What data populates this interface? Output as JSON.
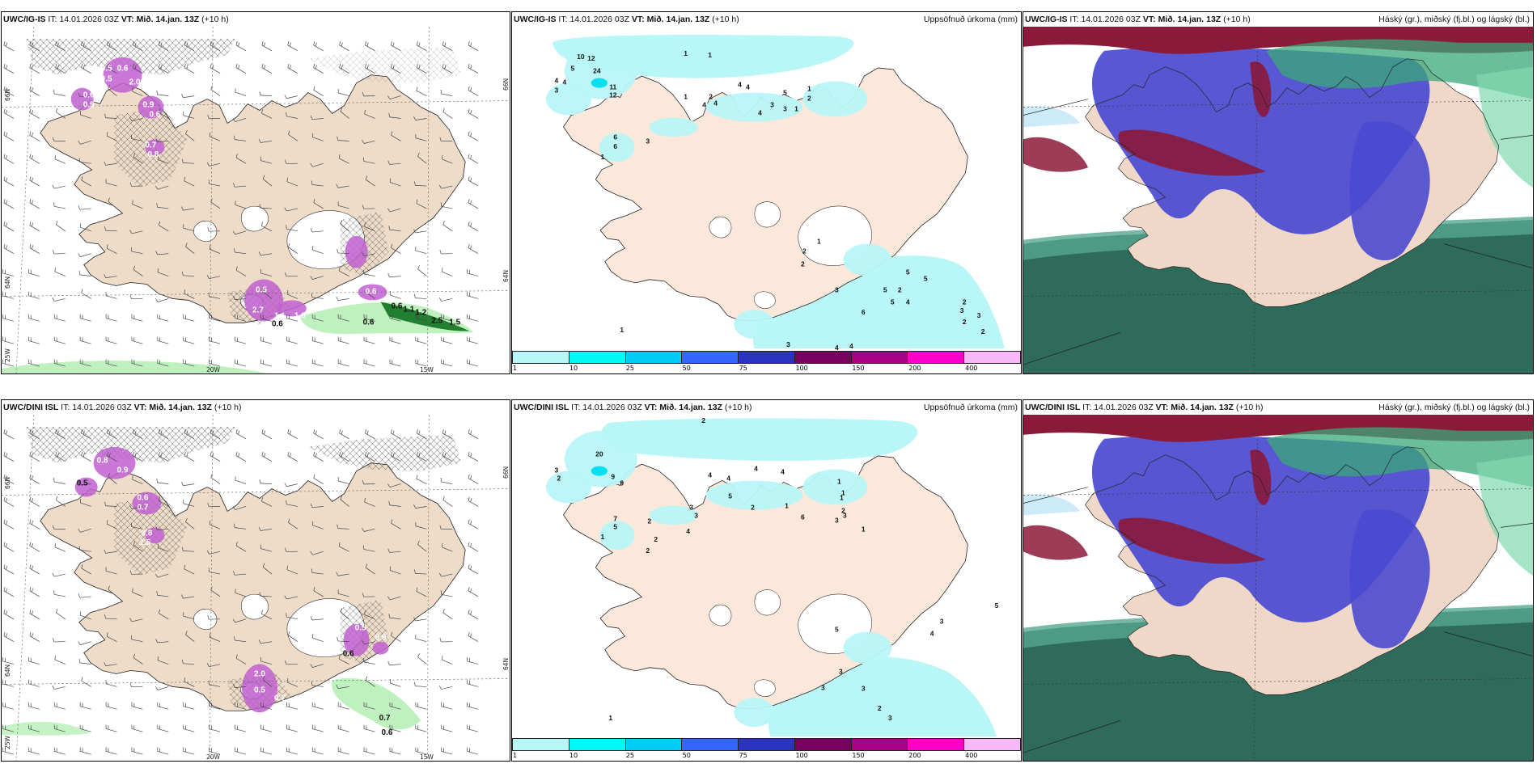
{
  "panels": [
    {
      "id": "top-left",
      "model": "UWC/IG-IS",
      "it_label": "IT:",
      "it_value": "14.01.2026 03Z",
      "vt_label": "VT:",
      "vt_value": "Mið. 14.jan. 13Z",
      "lead": "(+10 h)",
      "right_title": "",
      "axis_labels": {
        "lat_top": "66N",
        "lat_mid": "64N",
        "lon_left": "25W",
        "lon_20": "20W",
        "lon_15": "15W",
        "lat_top_right": "66N",
        "lat_mid_right": "64N"
      },
      "values": [
        "0.5",
        "0.6",
        "2.0",
        "0.5",
        "0.6",
        "0.5",
        "0.9",
        "0.6",
        "0.7",
        "0.8",
        "0.5",
        "2.7",
        "1.1",
        "1.0",
        "0.6",
        "1.3",
        "0.6",
        "1.1",
        "1.2",
        "2.5",
        "1.5",
        "0.6",
        "0.6"
      ]
    },
    {
      "id": "top-middle",
      "model": "UWC/IG-IS",
      "it_label": "IT:",
      "it_value": "14.01.2026 03Z",
      "vt_label": "VT:",
      "vt_value": "Mið. 14.jan. 13Z",
      "lead": "(+10 h)",
      "right_title": "Uppsöfnuð úrkoma (mm)",
      "values": [
        "10",
        "12",
        "5",
        "24",
        "4",
        "4",
        "3",
        "11",
        "12",
        "6",
        "6",
        "1",
        "3",
        "1",
        "1",
        "1",
        "4",
        "2",
        "4",
        "4",
        "4",
        "4",
        "5",
        "1",
        "2",
        "3",
        "3",
        "1",
        "1",
        "2",
        "2",
        "3",
        "2",
        "5",
        "5",
        "5",
        "5",
        "4",
        "6",
        "2",
        "3",
        "3",
        "2",
        "2",
        "3",
        "4",
        "4",
        "1"
      ]
    },
    {
      "id": "top-right",
      "model": "UWC/IG-IS",
      "it_label": "IT:",
      "it_value": "14.01.2026 03Z",
      "vt_label": "VT:",
      "vt_value": "Mið. 14.jan. 13Z",
      "lead": "(+10 h)",
      "right_title": "Háský (gr.), miðský (fj.bl.) og lágský (bl.)"
    },
    {
      "id": "bottom-left",
      "model": "UWC/DINI ISL",
      "it_label": "IT:",
      "it_value": "14.01.2026 03Z",
      "vt_label": "VT:",
      "vt_value": "Mið. 14.jan. 13Z",
      "lead": "(+10 h)",
      "right_title": "",
      "axis_labels": {
        "lat_top": "66N",
        "lat_mid": "64N",
        "lon_left": "25W",
        "lon_20": "20W",
        "lon_15": "15W",
        "lat_top_right": "66N",
        "lat_mid_right": "64N"
      },
      "values": [
        "0.7",
        "0.6",
        "0.8",
        "0.9",
        "0.6",
        "0.7",
        "0.8",
        "1.5",
        "1.0",
        "0.5",
        "0.9",
        "2.0",
        "0.5",
        "0.7",
        "0.6",
        "0.5"
      ]
    },
    {
      "id": "bottom-middle",
      "model": "UWC/DINI ISL",
      "it_label": "IT:",
      "it_value": "14.01.2026 03Z",
      "vt_label": "VT:",
      "vt_value": "Mið. 14.jan. 13Z",
      "lead": "(+10 h)",
      "right_title": "Uppsöfnuð úrkoma (mm)",
      "values": [
        "2",
        "20",
        "3",
        "2",
        "9",
        "9",
        "7",
        "5",
        "1",
        "2",
        "2",
        "2",
        "3",
        "3",
        "4",
        "4",
        "4",
        "5",
        "4",
        "4",
        "2",
        "1",
        "1",
        "1",
        "3",
        "3",
        "1",
        "2",
        "1",
        "6",
        "5",
        "3",
        "4",
        "5",
        "3",
        "3",
        "2",
        "3",
        "3",
        "1"
      ]
    },
    {
      "id": "bottom-right",
      "model": "UWC/DINI ISL",
      "it_label": "IT:",
      "it_value": "14.01.2026 03Z",
      "vt_label": "VT:",
      "vt_value": "Mið. 14.jan. 13Z",
      "lead": "(+10 h)",
      "right_title": "Háský (gr.), miðský (fj.bl.) og lágský (bl.)"
    }
  ],
  "precip_legend": {
    "ticks": [
      "1",
      "10",
      "25",
      "50",
      "75",
      "100",
      "150",
      "200",
      "400"
    ],
    "colors": [
      "#b8f6f8",
      "#00f8f8",
      "#00ccf8",
      "#3366ff",
      "#2a33c4",
      "#780060",
      "#a80088",
      "#ff00cc",
      "#f8b8f8"
    ]
  },
  "colors": {
    "land": "#eedcc8",
    "land_light": "#fbe8da",
    "sea_precip": "#b8f6f8",
    "purple": "#c060d0",
    "green": "#b8f0b8",
    "dark_green": "#208030",
    "cloud_low": "#2e6b5a",
    "cloud_mid": "#4a4ad0",
    "cloud_high": "#8b1a3a"
  }
}
